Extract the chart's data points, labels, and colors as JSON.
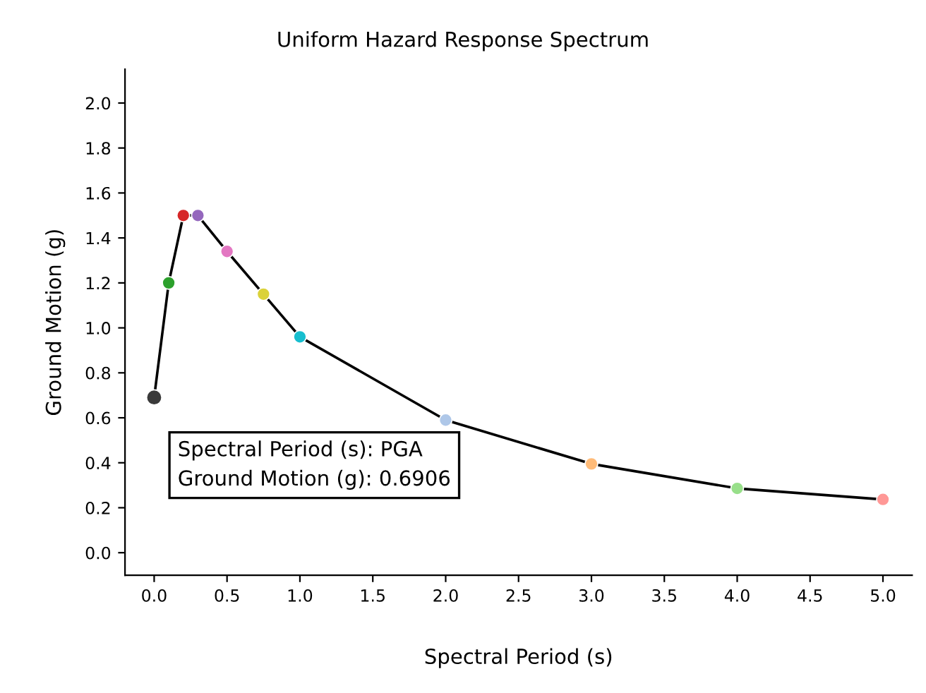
{
  "chart_data": {
    "type": "line",
    "title": "Uniform Hazard Response Spectrum",
    "xlabel": "Spectral Period (s)",
    "ylabel": "Ground Motion (g)",
    "x": [
      0,
      0.1,
      0.2,
      0.3,
      0.5,
      0.75,
      1.0,
      2.0,
      3.0,
      4.0,
      5.0
    ],
    "series": [
      {
        "color": "#000000",
        "colors": [
          "#3a3a3a",
          "#2ca02c",
          "#d62728",
          "#9467bd",
          "#e377c2",
          "#dbd23a",
          "#17becf",
          "#aec7e8",
          "#ffbb78",
          "#98df8a",
          "#ff9896"
        ],
        "values": [
          0.6906,
          1.2,
          1.5,
          1.5,
          1.34,
          1.15,
          0.96,
          0.59,
          0.395,
          0.286,
          0.237
        ]
      }
    ],
    "xlim": [
      -0.2,
      5.2
    ],
    "xticks": [
      {
        "value": 0,
        "label": "0.0"
      },
      0.5,
      {
        "value": 1,
        "label": "1.0"
      },
      1.5,
      {
        "value": 2,
        "label": "2.0"
      },
      2.5,
      {
        "value": 3,
        "label": "3.0"
      },
      3.5,
      {
        "value": 4,
        "label": "4.0"
      },
      4.5,
      {
        "value": 5,
        "label": "5.0"
      }
    ],
    "ylim": [
      -0.1,
      2.15
    ],
    "yticks": [
      {
        "value": 0,
        "label": "0.0"
      },
      0.2,
      0.4,
      0.6,
      0.8,
      {
        "value": 1,
        "label": "1.0"
      },
      1.2,
      1.4,
      1.6,
      1.8,
      {
        "value": 2,
        "label": "2.0"
      }
    ],
    "marker": "circle",
    "line_style": "solid",
    "grid": false,
    "legend": false,
    "annotations": [
      {
        "text": "Spectral Period (s): PGA\nGround Motion (g): 0.6906",
        "x": 0,
        "y": 0.6906
      }
    ]
  }
}
